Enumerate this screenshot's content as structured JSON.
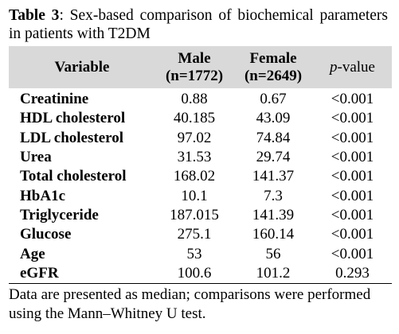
{
  "caption": {
    "label": "Table 3",
    "text": ": Sex-based comparison of biochemical parameters in patients with T2DM"
  },
  "header": {
    "variable": "Variable",
    "male_line1": "Male",
    "male_line2": "(n=1772)",
    "female_line1": "Female",
    "female_line2": "(n=2649)",
    "p_italic": "p",
    "p_rest": "-value"
  },
  "rows": [
    {
      "variable": "Creatinine",
      "male": "0.88",
      "female": "0.67",
      "p": "<0.001"
    },
    {
      "variable": "HDL cholesterol",
      "male": "40.185",
      "female": "43.09",
      "p": "<0.001"
    },
    {
      "variable": "LDL cholesterol",
      "male": "97.02",
      "female": "74.84",
      "p": "<0.001"
    },
    {
      "variable": "Urea",
      "male": "31.53",
      "female": "29.74",
      "p": "<0.001"
    },
    {
      "variable": "Total cholesterol",
      "male": "168.02",
      "female": "141.37",
      "p": "<0.001"
    },
    {
      "variable": "HbA1c",
      "male": "10.1",
      "female": "7.3",
      "p": "<0.001"
    },
    {
      "variable": "Triglyceride",
      "male": "187.015",
      "female": "141.39",
      "p": "<0.001"
    },
    {
      "variable": "Glucose",
      "male": "275.1",
      "female": "160.14",
      "p": "<0.001"
    },
    {
      "variable": "Age",
      "male": "53",
      "female": "56",
      "p": "<0.001"
    },
    {
      "variable": "eGFR",
      "male": "100.6",
      "female": "101.2",
      "p": "0.293"
    }
  ],
  "footnote": "Data are presented as median; comparisons were performed using the Mann–Whitney U test.",
  "colors": {
    "header_background": "#d9d9d9",
    "text": "#000000"
  }
}
